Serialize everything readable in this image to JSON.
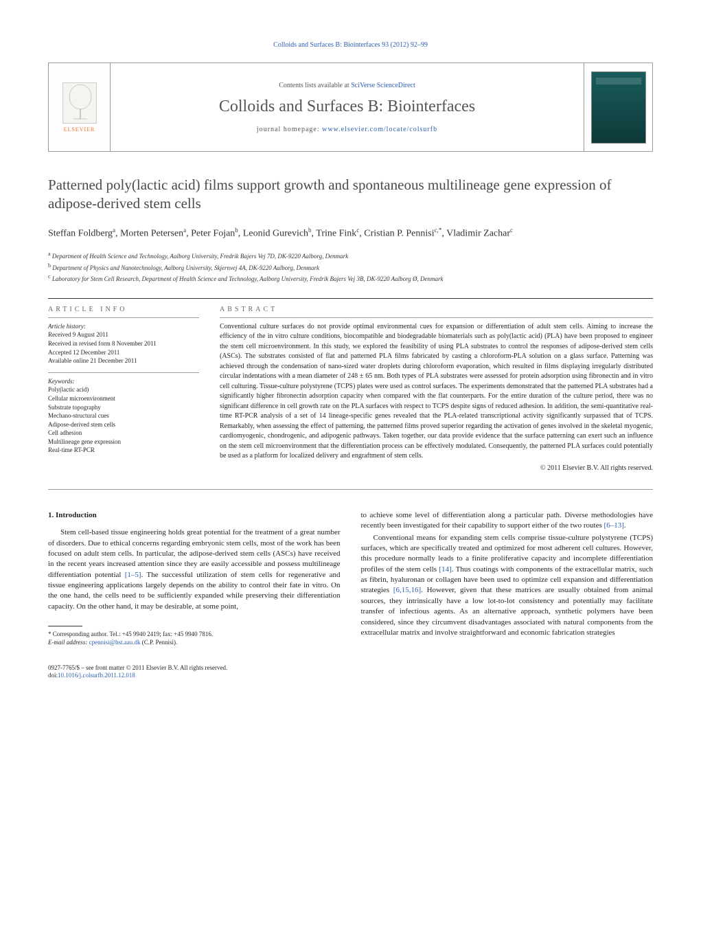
{
  "top_link": "Colloids and Surfaces B: Biointerfaces 93 (2012) 92–99",
  "header": {
    "contents_prefix": "Contents lists available at ",
    "contents_link": "SciVerse ScienceDirect",
    "journal_name": "Colloids and Surfaces B: Biointerfaces",
    "homepage_prefix": "journal homepage: ",
    "homepage_url": "www.elsevier.com/locate/colsurfb",
    "publisher_logo": "ELSEVIER"
  },
  "article": {
    "title": "Patterned poly(lactic acid) films support growth and spontaneous multilineage gene expression of adipose-derived stem cells",
    "authors_html": "Steffan Foldberg<sup>a</sup>, Morten Petersen<sup>a</sup>, Peter Fojan<sup>b</sup>, Leonid Gurevich<sup>b</sup>, Trine Fink<sup>c</sup>, Cristian P. Pennisi<sup>c,*</sup>, Vladimir Zachar<sup>c</sup>",
    "affiliations": [
      {
        "sup": "a",
        "text": "Department of Health Science and Technology, Aalborg University, Fredrik Bajers Vej 7D, DK-9220 Aalborg, Denmark"
      },
      {
        "sup": "b",
        "text": "Department of Physics and Nanotechnology, Aalborg University, Skjernvej 4A, DK-9220 Aalborg, Denmark"
      },
      {
        "sup": "c",
        "text": "Laboratory for Stem Cell Research, Department of Health Science and Technology, Aalborg University, Fredrik Bajers Vej 3B, DK-9220 Aalborg Ø, Denmark"
      }
    ]
  },
  "info": {
    "heading": "article info",
    "history_label": "Article history:",
    "history": [
      "Received 9 August 2011",
      "Received in revised form 8 November 2011",
      "Accepted 12 December 2011",
      "Available online 21 December 2011"
    ],
    "keywords_label": "Keywords:",
    "keywords": [
      "Poly(lactic acid)",
      "Cellular microenvironment",
      "Substrate topography",
      "Mechano-structural cues",
      "Adipose-derived stem cells",
      "Cell adhesion",
      "Multilineage gene expression",
      "Real-time RT-PCR"
    ]
  },
  "abstract": {
    "heading": "abstract",
    "text": "Conventional culture surfaces do not provide optimal environmental cues for expansion or differentiation of adult stem cells. Aiming to increase the efficiency of the in vitro culture conditions, biocompatible and biodegradable biomaterials such as poly(lactic acid) (PLA) have been proposed to engineer the stem cell microenvironment. In this study, we explored the feasibility of using PLA substrates to control the responses of adipose-derived stem cells (ASCs). The substrates consisted of flat and patterned PLA films fabricated by casting a chloroform-PLA solution on a glass surface. Patterning was achieved through the condensation of nano-sized water droplets during chloroform evaporation, which resulted in films displaying irregularly distributed circular indentations with a mean diameter of 248 ± 65 nm. Both types of PLA substrates were assessed for protein adsorption using fibronectin and in vitro cell culturing. Tissue-culture polystyrene (TCPS) plates were used as control surfaces. The experiments demonstrated that the patterned PLA substrates had a significantly higher fibronectin adsorption capacity when compared with the flat counterparts. For the entire duration of the culture period, there was no significant difference in cell growth rate on the PLA surfaces with respect to TCPS despite signs of reduced adhesion. In addition, the semi-quantitative real-time RT-PCR analysis of a set of 14 lineage-specific genes revealed that the PLA-related transcriptional activity significantly surpassed that of TCPS. Remarkably, when assessing the effect of patterning, the patterned films proved superior regarding the activation of genes involved in the skeletal myogenic, cardiomyogenic, chondrogenic, and adipogenic pathways. Taken together, our data provide evidence that the surface patterning can exert such an influence on the stem cell microenvironment that the differentiation process can be effectively modulated. Consequently, the patterned PLA surfaces could potentially be used as a platform for localized delivery and engraftment of stem cells.",
    "copyright": "© 2011 Elsevier B.V. All rights reserved."
  },
  "body": {
    "section_number": "1.",
    "section_title": "Introduction",
    "p1": "Stem cell-based tissue engineering holds great potential for the treatment of a great number of disorders. Due to ethical concerns regarding embryonic stem cells, most of the work has been focused on adult stem cells. In particular, the adipose-derived stem cells (ASCs) have received in the recent years increased attention since they are easily accessible and possess multilineage differentiation potential [1–5]. The successful utilization of stem cells for regenerative and tissue engineering applications largely depends on the ability to control their fate in vitro. On the one hand, the cells need to be sufficiently expanded while preserving their differentiation capacity. On the other hand, it may be desirable, at some point,",
    "p2": "to achieve some level of differentiation along a particular path. Diverse methodologies have recently been investigated for their capability to support either of the two routes [6–13].",
    "p3": "Conventional means for expanding stem cells comprise tissue-culture polystyrene (TCPS) surfaces, which are specifically treated and optimized for most adherent cell cultures. However, this procedure normally leads to a finite proliferative capacity and incomplete differentiation profiles of the stem cells [14]. Thus coatings with components of the extracellular matrix, such as fibrin, hyaluronan or collagen have been used to optimize cell expansion and differentiation strategies [6,15,16]. However, given that these matrices are usually obtained from animal sources, they intrinsically have a low lot-to-lot consistency and potentially may facilitate transfer of infectious agents. As an alternative approach, synthetic polymers have been considered, since they circumvent disadvantages associated with natural components from the extracellular matrix and involve straightforward and economic fabrication strategies"
  },
  "footnote": {
    "corresponding": "* Corresponding author. Tel.: +45 9940 2419; fax: +45 9940 7816.",
    "email_label": "E-mail address: ",
    "email": "cpennisi@hst.aau.dk",
    "email_suffix": " (C.P. Pennisi)."
  },
  "footer": {
    "issn": "0927-7765/$ – see front matter © 2011 Elsevier B.V. All rights reserved.",
    "doi_label": "doi:",
    "doi": "10.1016/j.colsurfb.2011.12.018"
  }
}
